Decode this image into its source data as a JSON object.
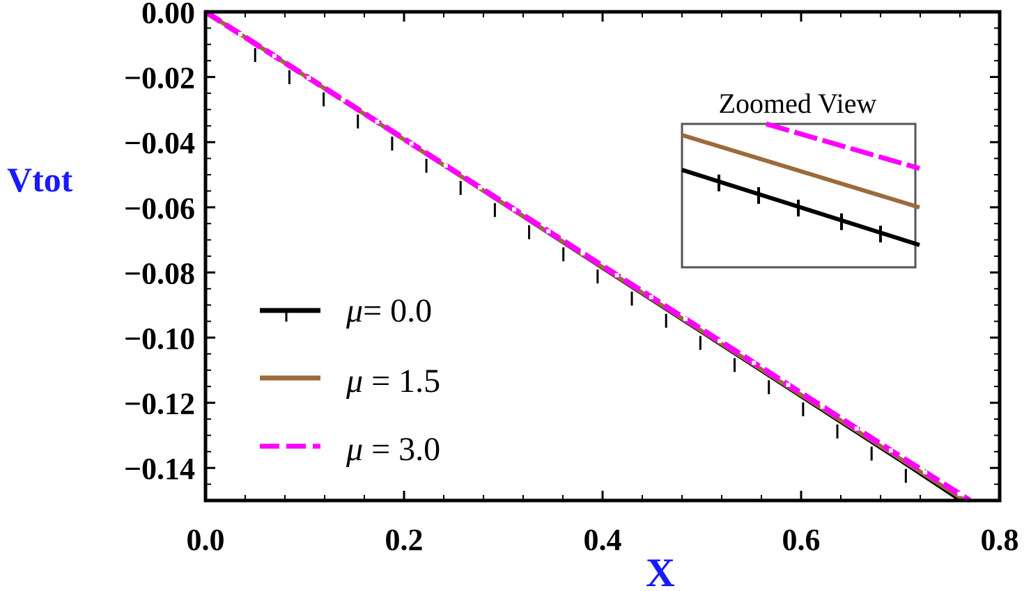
{
  "chart_data": {
    "type": "line",
    "title": "",
    "xlabel": "X",
    "ylabel": "Vtot",
    "xlim": [
      0.0,
      0.8
    ],
    "ylim": [
      -0.15,
      0.0
    ],
    "x_ticks": [
      "0.0",
      "0.2",
      "0.4",
      "0.6",
      "0.8"
    ],
    "y_ticks": [
      "0.00",
      "−0.02",
      "−0.04",
      "−0.06",
      "−0.08",
      "−0.10",
      "−0.12",
      "−0.14"
    ],
    "x_tick_values": [
      0.0,
      0.2,
      0.4,
      0.6,
      0.8
    ],
    "y_tick_values": [
      0.0,
      -0.02,
      -0.04,
      -0.06,
      -0.08,
      -0.1,
      -0.12,
      -0.14
    ],
    "series": [
      {
        "name": "μ= 0.0",
        "color": "#000000",
        "style": "solid-with-markers",
        "x": [
          0.0,
          0.1,
          0.2,
          0.3,
          0.4,
          0.5,
          0.6,
          0.7,
          0.76
        ],
        "y": [
          0.0,
          -0.0197,
          -0.0394,
          -0.0591,
          -0.0788,
          -0.0985,
          -0.1182,
          -0.1379,
          -0.15
        ]
      },
      {
        "name": "μ = 1.5",
        "color": "#9c6b3c",
        "style": "solid",
        "x": [
          0.0,
          0.1,
          0.2,
          0.3,
          0.4,
          0.5,
          0.6,
          0.7,
          0.765
        ],
        "y": [
          0.0,
          -0.0196,
          -0.0392,
          -0.0588,
          -0.0784,
          -0.098,
          -0.1176,
          -0.1372,
          -0.15
        ]
      },
      {
        "name": "μ = 3.0",
        "color": "#ff00ff",
        "style": "dashed",
        "x": [
          0.0,
          0.1,
          0.2,
          0.3,
          0.4,
          0.5,
          0.6,
          0.7,
          0.77
        ],
        "y": [
          0.0,
          -0.0195,
          -0.039,
          -0.0585,
          -0.078,
          -0.0975,
          -0.117,
          -0.1365,
          -0.15
        ]
      }
    ],
    "legend_position": "bottom-left",
    "inset": {
      "title": "Zoomed View",
      "position": "top-right"
    }
  }
}
